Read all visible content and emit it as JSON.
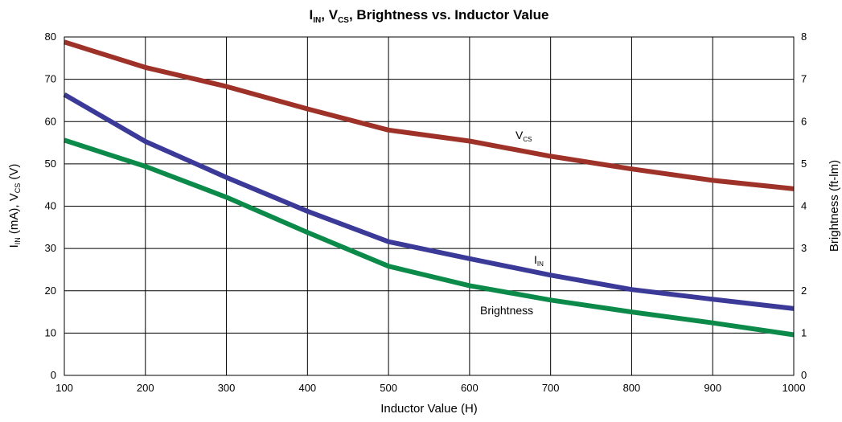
{
  "chart_data": {
    "type": "line",
    "title": {
      "main": "I",
      "sub1": "IN",
      "sep1": ", V",
      "sub2": "CS",
      "rest": ", Brightness vs. Inductor Value"
    },
    "xlabel": "Inductor Value (H)",
    "ylabel_left": {
      "a": "I",
      "a_sub": "IN",
      "b": " (mA), V",
      "b_sub": "CS",
      "c": " (V)"
    },
    "ylabel_right": "Brightness (ft-lm)",
    "xlim": [
      100,
      1000
    ],
    "ylim_left": [
      0,
      80
    ],
    "ylim_right": [
      0,
      8
    ],
    "x_ticks": [
      "100",
      "200",
      "300",
      "400",
      "500",
      "600",
      "700",
      "800",
      "900",
      "1000"
    ],
    "y_ticks_left": [
      "0",
      "10",
      "20",
      "30",
      "40",
      "50",
      "60",
      "70",
      "80"
    ],
    "y_ticks_right": [
      "0",
      "1",
      "2",
      "3",
      "4",
      "5",
      "6",
      "7",
      "8"
    ],
    "grid": true,
    "x": [
      100,
      200,
      300,
      400,
      500,
      600,
      700,
      800,
      900,
      1000
    ],
    "series": [
      {
        "name": "V",
        "name_sub": "CS",
        "axis": "left",
        "color": "#9e3228",
        "values": [
          78.8,
          72.8,
          68.3,
          63.0,
          58.0,
          55.4,
          51.8,
          48.8,
          46.1,
          44.1
        ]
      },
      {
        "name": "I",
        "name_sub": "IN",
        "axis": "left",
        "color": "#3b3a98",
        "values": [
          66.4,
          55.3,
          46.8,
          38.8,
          31.6,
          27.6,
          23.7,
          20.3,
          18.0,
          15.8
        ]
      },
      {
        "name": "Brightness",
        "axis": "right",
        "color": "#0c8a4a",
        "values": [
          5.56,
          4.94,
          4.21,
          3.38,
          2.58,
          2.12,
          1.78,
          1.5,
          1.24,
          0.96
        ]
      }
    ]
  }
}
